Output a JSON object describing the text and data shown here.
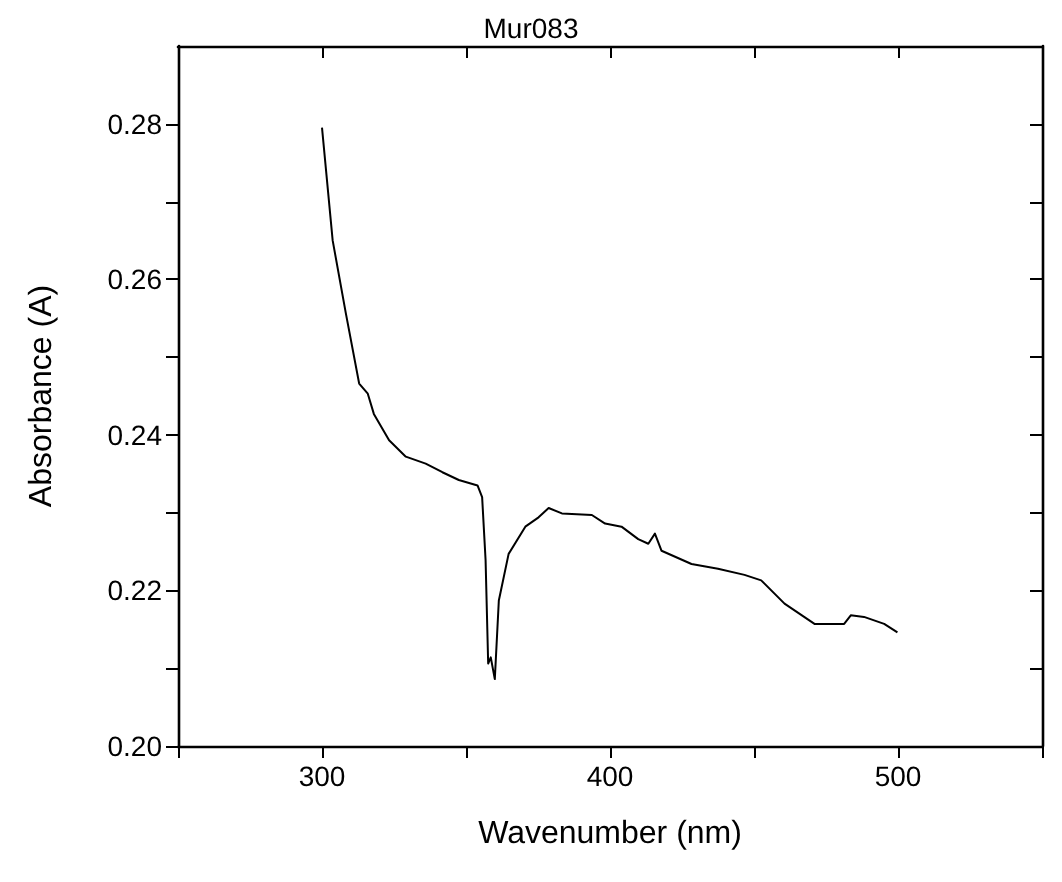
{
  "chart_data": {
    "type": "line",
    "title": "Mur083",
    "xlabel": "Wavenumber (nm)",
    "ylabel": "Absorbance (A)",
    "x": [
      300,
      303.7,
      308.3,
      312.9,
      315.9,
      318,
      323.3,
      329.1,
      336,
      341.8,
      347.5,
      354,
      355.6,
      356.8,
      357.7,
      358.6,
      360,
      361.4,
      364.8,
      370.6,
      375.2,
      378.7,
      383.3,
      393.7,
      398.3,
      404,
      409.8,
      413.3,
      415.6,
      417.9,
      428.3,
      437.5,
      446.7,
      452.5,
      460.6,
      471,
      481.3,
      483.6,
      488.2,
      495.2,
      499.8
    ],
    "series": [
      {
        "color": "#000000",
        "values": [
          0.2795,
          0.265,
          0.2556,
          0.2466,
          0.2453,
          0.2427,
          0.2393,
          0.2372,
          0.2363,
          0.2352,
          0.2342,
          0.2335,
          0.232,
          0.2239,
          0.2106,
          0.2114,
          0.2086,
          0.2187,
          0.2247,
          0.2282,
          0.2294,
          0.2306,
          0.2299,
          0.2297,
          0.2286,
          0.2282,
          0.2266,
          0.226,
          0.2273,
          0.2251,
          0.2234,
          0.2228,
          0.222,
          0.2213,
          0.2183,
          0.2157,
          0.2157,
          0.2168,
          0.2166,
          0.2157,
          0.2146
        ]
      }
    ],
    "xlim": [
      250,
      550
    ],
    "ylim": [
      0.2,
      0.29
    ],
    "xticks": [
      {
        "value": 250,
        "label": null
      },
      300,
      {
        "value": 350,
        "label": null
      },
      400,
      {
        "value": 450,
        "label": null
      },
      500,
      {
        "value": 550,
        "label": null
      }
    ],
    "yticks": [
      {
        "value": 0.2,
        "label": "0.20"
      },
      {
        "value": 0.21,
        "label": null
      },
      {
        "value": 0.22,
        "label": "0.22"
      },
      {
        "value": 0.23,
        "label": null
      },
      {
        "value": 0.24,
        "label": "0.24"
      },
      {
        "value": 0.25,
        "label": null
      },
      {
        "value": 0.26,
        "label": "0.26"
      },
      {
        "value": 0.27,
        "label": null
      },
      {
        "value": 0.28,
        "label": "0.28"
      }
    ],
    "grid": false,
    "marker": "none",
    "line_style": "solid"
  }
}
